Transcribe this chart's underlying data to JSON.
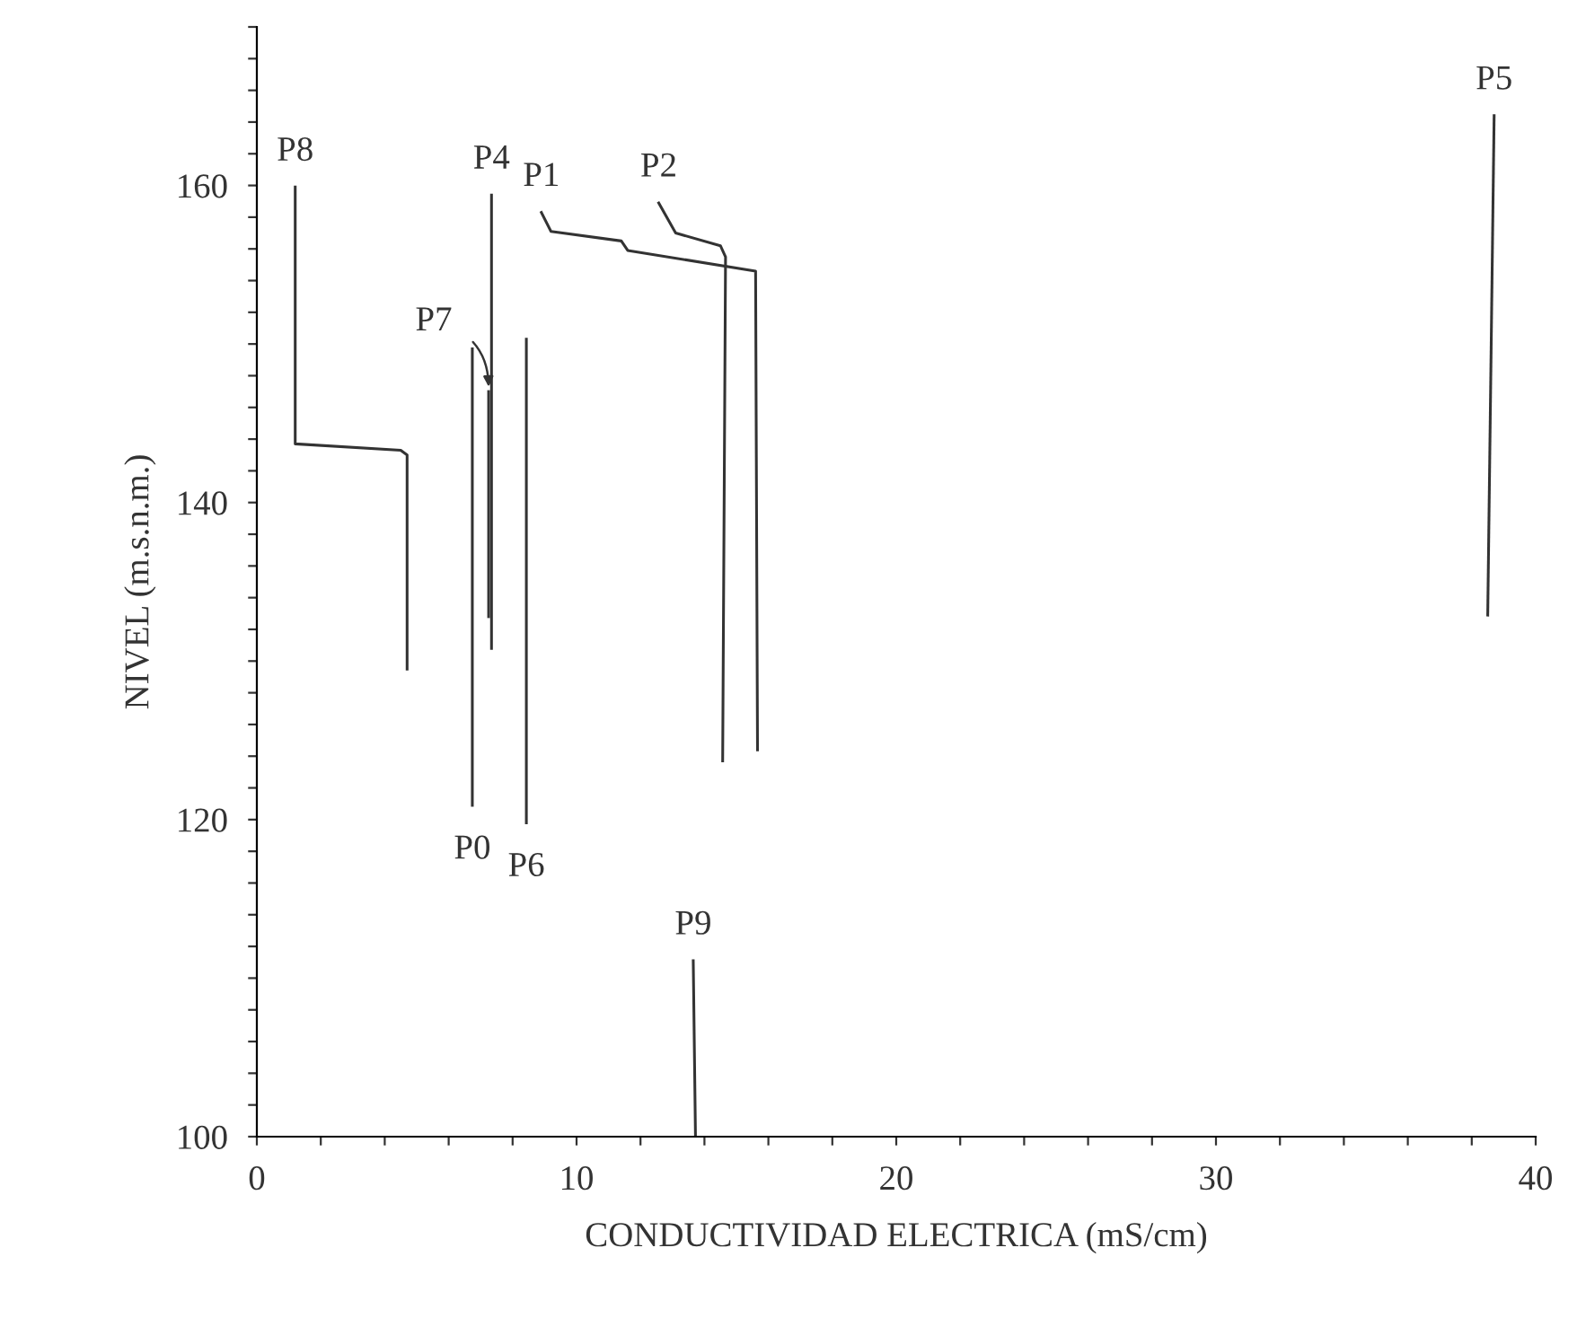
{
  "chart_data": {
    "type": "line",
    "xlabel": "CONDUCTIVIDAD ELECTRICA (mS/cm)",
    "ylabel": "NIVEL (m.s.n.m.)",
    "xlim": [
      0,
      40
    ],
    "ylim": [
      100,
      170
    ],
    "xticks": [
      0,
      {
        "value": 2,
        "label": null
      },
      {
        "value": 4,
        "label": null
      },
      {
        "value": 6,
        "label": null
      },
      {
        "value": 8,
        "label": null
      },
      10,
      {
        "value": 12,
        "label": null
      },
      {
        "value": 14,
        "label": null
      },
      {
        "value": 16,
        "label": null
      },
      {
        "value": 18,
        "label": null
      },
      20,
      {
        "value": 22,
        "label": null
      },
      {
        "value": 24,
        "label": null
      },
      {
        "value": 26,
        "label": null
      },
      {
        "value": 28,
        "label": null
      },
      30,
      {
        "value": 32,
        "label": null
      },
      {
        "value": 34,
        "label": null
      },
      {
        "value": 36,
        "label": null
      },
      {
        "value": 38,
        "label": null
      },
      40
    ],
    "yticks": [
      100,
      {
        "value": 102,
        "label": null
      },
      {
        "value": 104,
        "label": null
      },
      {
        "value": 106,
        "label": null
      },
      {
        "value": 108,
        "label": null
      },
      {
        "value": 110,
        "label": null
      },
      {
        "value": 112,
        "label": null
      },
      {
        "value": 114,
        "label": null
      },
      {
        "value": 116,
        "label": null
      },
      {
        "value": 118,
        "label": null
      },
      120,
      {
        "value": 122,
        "label": null
      },
      {
        "value": 124,
        "label": null
      },
      {
        "value": 126,
        "label": null
      },
      {
        "value": 128,
        "label": null
      },
      {
        "value": 130,
        "label": null
      },
      {
        "value": 132,
        "label": null
      },
      {
        "value": 134,
        "label": null
      },
      {
        "value": 136,
        "label": null
      },
      {
        "value": 138,
        "label": null
      },
      140,
      {
        "value": 142,
        "label": null
      },
      {
        "value": 144,
        "label": null
      },
      {
        "value": 146,
        "label": null
      },
      {
        "value": 148,
        "label": null
      },
      {
        "value": 150,
        "label": null
      },
      {
        "value": 152,
        "label": null
      },
      {
        "value": 154,
        "label": null
      },
      {
        "value": 156,
        "label": null
      },
      {
        "value": 158,
        "label": null
      },
      160,
      {
        "value": 162,
        "label": null
      },
      {
        "value": 164,
        "label": null
      },
      {
        "value": 166,
        "label": null
      },
      {
        "value": 168,
        "label": null
      },
      {
        "value": 170,
        "label": null
      }
    ],
    "grid": false,
    "legend": false,
    "line_style": "solid",
    "series": [
      {
        "name": "P8",
        "color": "#333333",
        "x": [
          1.2,
          1.2,
          4.5,
          4.7,
          4.7
        ],
        "values": [
          159.9,
          143.7,
          143.3,
          143.0,
          129.5
        ]
      },
      {
        "name": "P4",
        "color": "#333333",
        "x": [
          7.34,
          7.34
        ],
        "values": [
          159.4,
          130.8
        ]
      },
      {
        "name": "P7",
        "color": "#333333",
        "x": [
          7.25,
          7.25
        ],
        "values": [
          147.0,
          132.8
        ]
      },
      {
        "name": "P0",
        "color": "#333333",
        "x": [
          6.74,
          6.74
        ],
        "values": [
          120.9,
          149.7
        ]
      },
      {
        "name": "P6",
        "color": "#333333",
        "x": [
          8.43,
          8.43
        ],
        "values": [
          119.8,
          150.3
        ]
      },
      {
        "name": "P1",
        "color": "#333333",
        "x": [
          8.9,
          9.2,
          11.4,
          11.6,
          15.6,
          15.66
        ],
        "values": [
          158.3,
          157.1,
          156.5,
          155.9,
          154.6,
          124.4
        ]
      },
      {
        "name": "P2",
        "color": "#333333",
        "x": [
          12.57,
          13.1,
          14.5,
          14.66,
          14.57
        ],
        "values": [
          158.9,
          157.0,
          156.2,
          155.5,
          123.7
        ]
      },
      {
        "name": "P9",
        "color": "#333333",
        "x": [
          13.65,
          13.72
        ],
        "values": [
          111.1,
          100
        ]
      },
      {
        "name": "P5",
        "color": "#333333",
        "x": [
          38.7,
          38.5
        ],
        "values": [
          164.4,
          132.9
        ]
      }
    ]
  }
}
